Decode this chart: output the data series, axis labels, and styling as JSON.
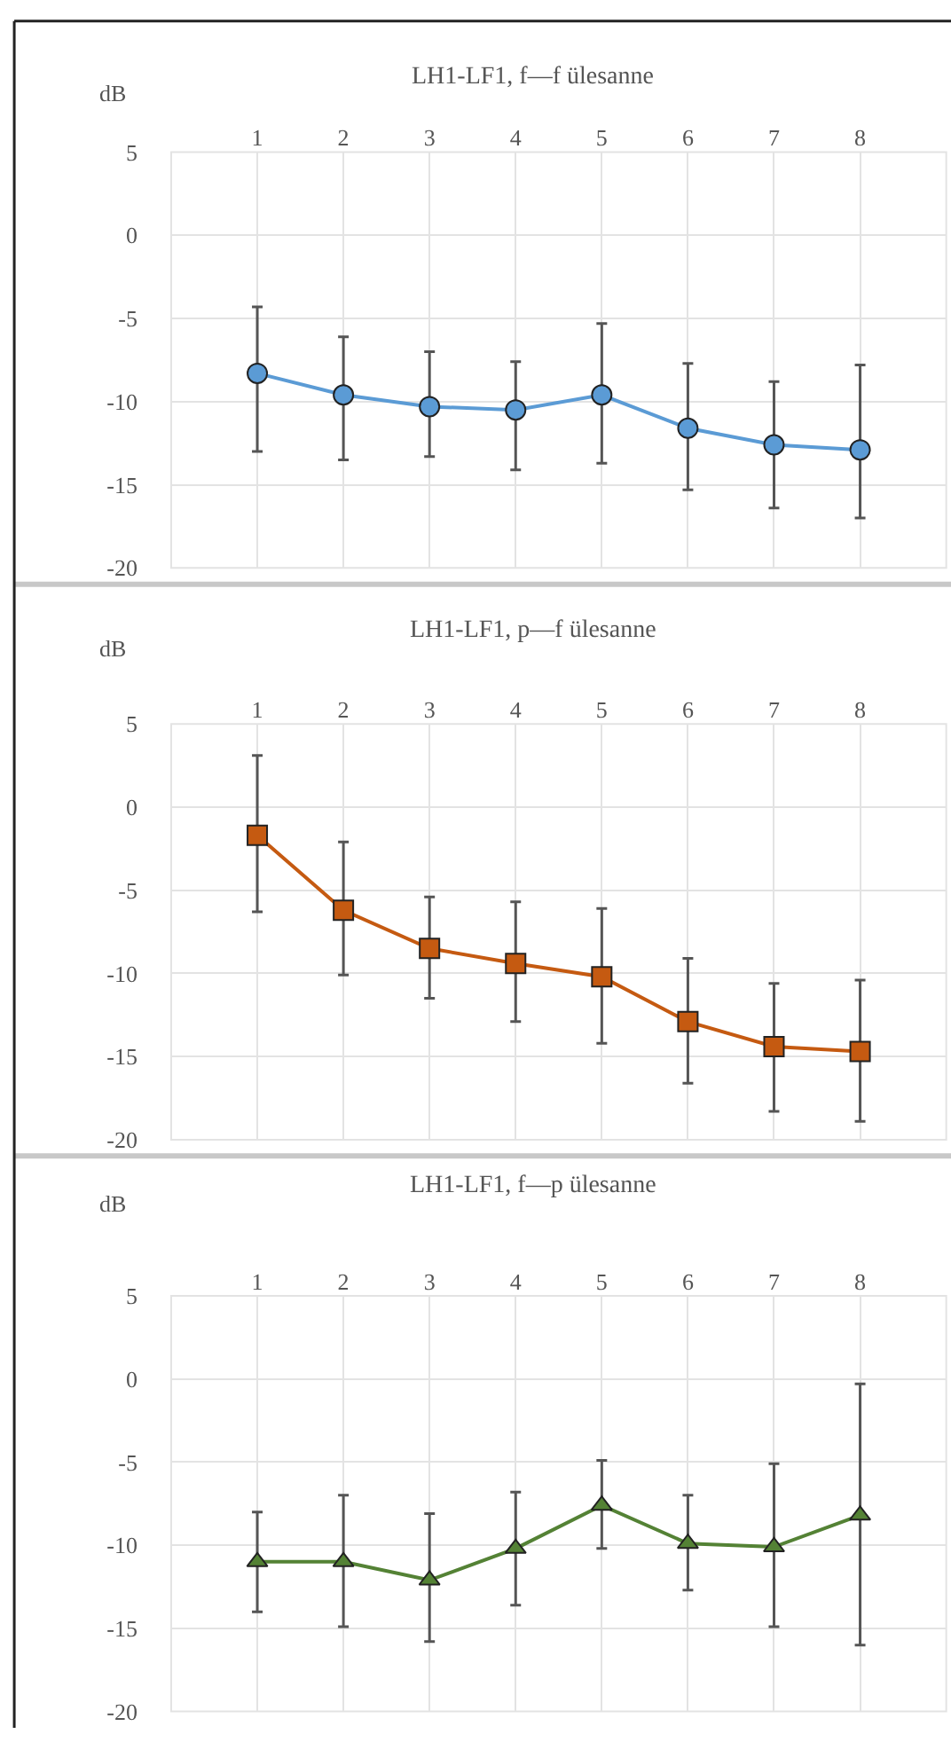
{
  "chart_data": [
    {
      "type": "line",
      "title": "LH1-LF1, f—f ülesanne",
      "ylabel": "dB",
      "categories": [
        "1",
        "2",
        "3",
        "4",
        "5",
        "6",
        "7",
        "8"
      ],
      "series": [
        {
          "color": "#5b9bd5",
          "values": [
            -8.3,
            -9.6,
            -10.3,
            -10.5,
            -9.6,
            -11.6,
            -12.6,
            -12.9
          ],
          "errors": [
            [
              -13.0,
              -4.3
            ],
            [
              -13.5,
              -6.1
            ],
            [
              -13.3,
              -7.0
            ],
            [
              -14.1,
              -7.6
            ],
            [
              -13.7,
              -5.3
            ],
            [
              -15.3,
              -7.7
            ],
            [
              -16.4,
              -8.8
            ],
            [
              -17.0,
              -7.8
            ]
          ]
        }
      ],
      "ylim": [
        -20,
        5
      ],
      "yticks": [
        -20,
        -15,
        -10,
        -5,
        0,
        5
      ],
      "grid": true,
      "marker": "circle",
      "line_style": "solid"
    },
    {
      "type": "line",
      "title": "LH1-LF1, p—f ülesanne",
      "ylabel": "dB",
      "categories": [
        "1",
        "2",
        "3",
        "4",
        "5",
        "6",
        "7",
        "8"
      ],
      "series": [
        {
          "color": "#c55a11",
          "values": [
            -1.7,
            -6.2,
            -8.5,
            -9.4,
            -10.2,
            -12.9,
            -14.4,
            -14.7
          ],
          "errors": [
            [
              -6.3,
              3.1
            ],
            [
              -10.1,
              -2.1
            ],
            [
              -11.5,
              -5.4
            ],
            [
              -12.9,
              -5.7
            ],
            [
              -14.2,
              -6.1
            ],
            [
              -16.6,
              -9.1
            ],
            [
              -18.3,
              -10.6
            ],
            [
              -18.9,
              -10.4
            ]
          ]
        }
      ],
      "ylim": [
        -20,
        5
      ],
      "yticks": [
        -20,
        -15,
        -10,
        -5,
        0,
        5
      ],
      "grid": true,
      "marker": "square",
      "line_style": "solid"
    },
    {
      "type": "line",
      "title": "LH1-LF1, f—p ülesanne",
      "ylabel": "dB",
      "categories": [
        "1",
        "2",
        "3",
        "4",
        "5",
        "6",
        "7",
        "8"
      ],
      "series": [
        {
          "color": "#548235",
          "values": [
            -11.0,
            -11.0,
            -12.1,
            -10.2,
            -7.6,
            -9.9,
            -10.1,
            -8.2
          ],
          "errors": [
            [
              -14.0,
              -8.0
            ],
            [
              -14.9,
              -7.0
            ],
            [
              -15.8,
              -8.1
            ],
            [
              -13.6,
              -6.8
            ],
            [
              -10.2,
              -4.9
            ],
            [
              -12.7,
              -7.0
            ],
            [
              -14.9,
              -5.1
            ],
            [
              -16.0,
              -0.3
            ]
          ]
        }
      ],
      "ylim": [
        -20,
        5
      ],
      "yticks": [
        -20,
        -15,
        -10,
        -5,
        0,
        5
      ],
      "grid": true,
      "marker": "triangle",
      "line_style": "solid"
    }
  ]
}
